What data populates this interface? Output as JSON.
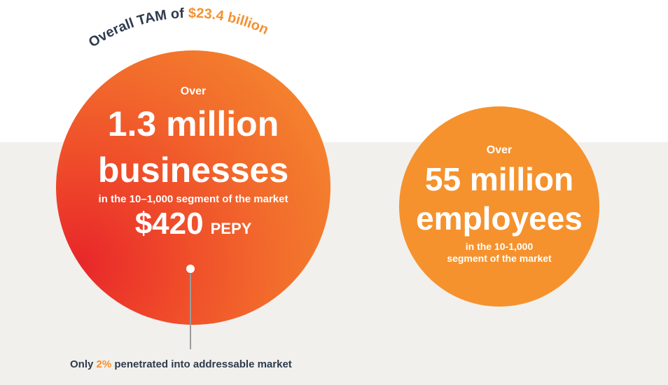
{
  "title": {
    "prefix": "Overall TAM of ",
    "value": "$23.4 billion"
  },
  "left_circle": {
    "over": "Over",
    "headline_number": "1.3 million",
    "headline_word": "businesses",
    "segment": "in the 10–1,000 segment of the market",
    "price": "$420",
    "price_unit": "PEPY"
  },
  "right_circle": {
    "over": "Over",
    "headline_number": "55 million",
    "headline_word": "employees",
    "segment_line1": "in the 10-1,000",
    "segment_line2": "segment of the market"
  },
  "footnote": {
    "prefix": "Only ",
    "value": "2%",
    "suffix": " penetrated into addressable market"
  },
  "colors": {
    "navy_text": "#2e3b4e",
    "accent_orange": "#f5902f",
    "gradient_red": "#e8262a",
    "circle_orange": "#f5922e",
    "background_band": "#f1f0ec"
  }
}
